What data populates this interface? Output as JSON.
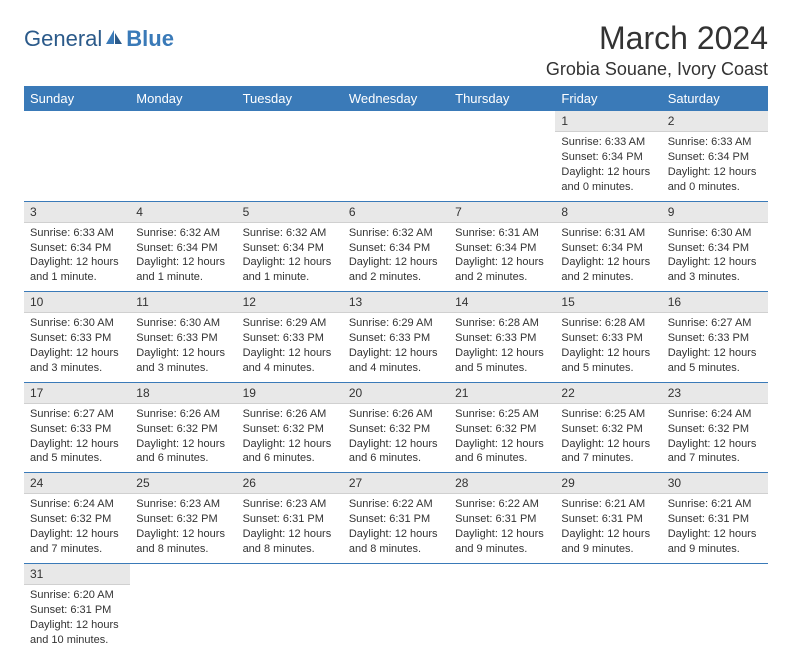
{
  "logo": {
    "text1": "General",
    "text2": "Blue"
  },
  "title": "March 2024",
  "location": "Grobia Souane, Ivory Coast",
  "colors": {
    "header_bg": "#3a7ab8",
    "header_text": "#ffffff",
    "daynum_bg": "#e8e8e8",
    "row_border": "#3a7ab8",
    "body_text": "#333333",
    "logo_primary": "#2b5a8a",
    "logo_accent": "#3a7ab8"
  },
  "weekdays": [
    "Sunday",
    "Monday",
    "Tuesday",
    "Wednesday",
    "Thursday",
    "Friday",
    "Saturday"
  ],
  "weeks": [
    [
      null,
      null,
      null,
      null,
      null,
      {
        "n": "1",
        "sunrise": "6:33 AM",
        "sunset": "6:34 PM",
        "daylight": "12 hours and 0 minutes."
      },
      {
        "n": "2",
        "sunrise": "6:33 AM",
        "sunset": "6:34 PM",
        "daylight": "12 hours and 0 minutes."
      }
    ],
    [
      {
        "n": "3",
        "sunrise": "6:33 AM",
        "sunset": "6:34 PM",
        "daylight": "12 hours and 1 minute."
      },
      {
        "n": "4",
        "sunrise": "6:32 AM",
        "sunset": "6:34 PM",
        "daylight": "12 hours and 1 minute."
      },
      {
        "n": "5",
        "sunrise": "6:32 AM",
        "sunset": "6:34 PM",
        "daylight": "12 hours and 1 minute."
      },
      {
        "n": "6",
        "sunrise": "6:32 AM",
        "sunset": "6:34 PM",
        "daylight": "12 hours and 2 minutes."
      },
      {
        "n": "7",
        "sunrise": "6:31 AM",
        "sunset": "6:34 PM",
        "daylight": "12 hours and 2 minutes."
      },
      {
        "n": "8",
        "sunrise": "6:31 AM",
        "sunset": "6:34 PM",
        "daylight": "12 hours and 2 minutes."
      },
      {
        "n": "9",
        "sunrise": "6:30 AM",
        "sunset": "6:34 PM",
        "daylight": "12 hours and 3 minutes."
      }
    ],
    [
      {
        "n": "10",
        "sunrise": "6:30 AM",
        "sunset": "6:33 PM",
        "daylight": "12 hours and 3 minutes."
      },
      {
        "n": "11",
        "sunrise": "6:30 AM",
        "sunset": "6:33 PM",
        "daylight": "12 hours and 3 minutes."
      },
      {
        "n": "12",
        "sunrise": "6:29 AM",
        "sunset": "6:33 PM",
        "daylight": "12 hours and 4 minutes."
      },
      {
        "n": "13",
        "sunrise": "6:29 AM",
        "sunset": "6:33 PM",
        "daylight": "12 hours and 4 minutes."
      },
      {
        "n": "14",
        "sunrise": "6:28 AM",
        "sunset": "6:33 PM",
        "daylight": "12 hours and 5 minutes."
      },
      {
        "n": "15",
        "sunrise": "6:28 AM",
        "sunset": "6:33 PM",
        "daylight": "12 hours and 5 minutes."
      },
      {
        "n": "16",
        "sunrise": "6:27 AM",
        "sunset": "6:33 PM",
        "daylight": "12 hours and 5 minutes."
      }
    ],
    [
      {
        "n": "17",
        "sunrise": "6:27 AM",
        "sunset": "6:33 PM",
        "daylight": "12 hours and 5 minutes."
      },
      {
        "n": "18",
        "sunrise": "6:26 AM",
        "sunset": "6:32 PM",
        "daylight": "12 hours and 6 minutes."
      },
      {
        "n": "19",
        "sunrise": "6:26 AM",
        "sunset": "6:32 PM",
        "daylight": "12 hours and 6 minutes."
      },
      {
        "n": "20",
        "sunrise": "6:26 AM",
        "sunset": "6:32 PM",
        "daylight": "12 hours and 6 minutes."
      },
      {
        "n": "21",
        "sunrise": "6:25 AM",
        "sunset": "6:32 PM",
        "daylight": "12 hours and 6 minutes."
      },
      {
        "n": "22",
        "sunrise": "6:25 AM",
        "sunset": "6:32 PM",
        "daylight": "12 hours and 7 minutes."
      },
      {
        "n": "23",
        "sunrise": "6:24 AM",
        "sunset": "6:32 PM",
        "daylight": "12 hours and 7 minutes."
      }
    ],
    [
      {
        "n": "24",
        "sunrise": "6:24 AM",
        "sunset": "6:32 PM",
        "daylight": "12 hours and 7 minutes."
      },
      {
        "n": "25",
        "sunrise": "6:23 AM",
        "sunset": "6:32 PM",
        "daylight": "12 hours and 8 minutes."
      },
      {
        "n": "26",
        "sunrise": "6:23 AM",
        "sunset": "6:31 PM",
        "daylight": "12 hours and 8 minutes."
      },
      {
        "n": "27",
        "sunrise": "6:22 AM",
        "sunset": "6:31 PM",
        "daylight": "12 hours and 8 minutes."
      },
      {
        "n": "28",
        "sunrise": "6:22 AM",
        "sunset": "6:31 PM",
        "daylight": "12 hours and 9 minutes."
      },
      {
        "n": "29",
        "sunrise": "6:21 AM",
        "sunset": "6:31 PM",
        "daylight": "12 hours and 9 minutes."
      },
      {
        "n": "30",
        "sunrise": "6:21 AM",
        "sunset": "6:31 PM",
        "daylight": "12 hours and 9 minutes."
      }
    ],
    [
      {
        "n": "31",
        "sunrise": "6:20 AM",
        "sunset": "6:31 PM",
        "daylight": "12 hours and 10 minutes."
      },
      null,
      null,
      null,
      null,
      null,
      null
    ]
  ],
  "labels": {
    "sunrise": "Sunrise:",
    "sunset": "Sunset:",
    "daylight": "Daylight:"
  }
}
